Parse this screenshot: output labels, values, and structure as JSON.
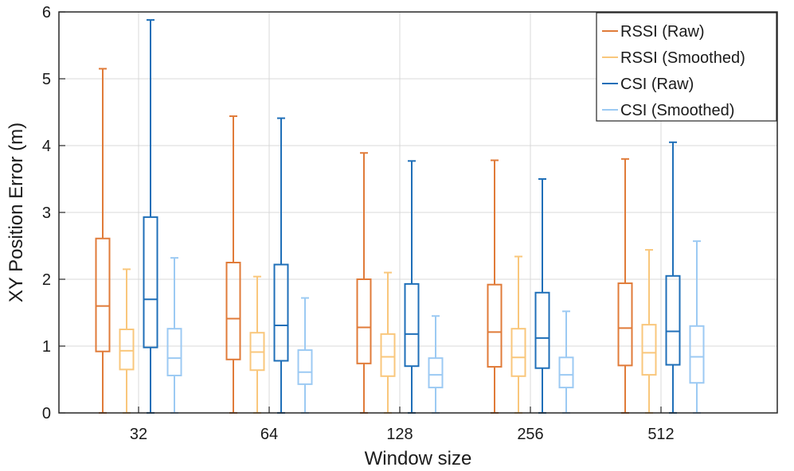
{
  "chart_data": {
    "type": "boxplot",
    "title": "",
    "xlabel": "Window size",
    "ylabel": "XY Position Error (m)",
    "categories": [
      "32",
      "64",
      "128",
      "256",
      "512"
    ],
    "ylim": [
      0,
      6
    ],
    "yticks": [
      0,
      1,
      2,
      3,
      4,
      5,
      6
    ],
    "grid": true,
    "legend_position": "top-right",
    "series": [
      {
        "name": "RSSI (Raw)",
        "color": "#e07b39",
        "boxes": [
          {
            "min": 0.0,
            "q1": 0.92,
            "median": 1.6,
            "q3": 2.61,
            "max": 5.15
          },
          {
            "min": 0.0,
            "q1": 0.8,
            "median": 1.41,
            "q3": 2.25,
            "max": 4.44
          },
          {
            "min": 0.0,
            "q1": 0.74,
            "median": 1.28,
            "q3": 2.0,
            "max": 3.89
          },
          {
            "min": 0.0,
            "q1": 0.69,
            "median": 1.21,
            "q3": 1.92,
            "max": 3.78
          },
          {
            "min": 0.0,
            "q1": 0.71,
            "median": 1.27,
            "q3": 1.94,
            "max": 3.8
          }
        ]
      },
      {
        "name": "RSSI (Smoothed)",
        "color": "#f9c77c",
        "boxes": [
          {
            "min": 0.0,
            "q1": 0.65,
            "median": 0.93,
            "q3": 1.25,
            "max": 2.15
          },
          {
            "min": 0.0,
            "q1": 0.64,
            "median": 0.91,
            "q3": 1.2,
            "max": 2.04
          },
          {
            "min": 0.0,
            "q1": 0.55,
            "median": 0.84,
            "q3": 1.18,
            "max": 2.1
          },
          {
            "min": 0.0,
            "q1": 0.55,
            "median": 0.83,
            "q3": 1.26,
            "max": 2.34
          },
          {
            "min": 0.0,
            "q1": 0.57,
            "median": 0.9,
            "q3": 1.32,
            "max": 2.44
          }
        ]
      },
      {
        "name": "CSI (Raw)",
        "color": "#1f6fb8",
        "boxes": [
          {
            "min": 0.0,
            "q1": 0.98,
            "median": 1.7,
            "q3": 2.93,
            "max": 5.88
          },
          {
            "min": 0.0,
            "q1": 0.78,
            "median": 1.31,
            "q3": 2.22,
            "max": 4.41
          },
          {
            "min": 0.0,
            "q1": 0.7,
            "median": 1.18,
            "q3": 1.93,
            "max": 3.77
          },
          {
            "min": 0.0,
            "q1": 0.67,
            "median": 1.12,
            "q3": 1.8,
            "max": 3.5
          },
          {
            "min": 0.0,
            "q1": 0.72,
            "median": 1.22,
            "q3": 2.05,
            "max": 4.05
          }
        ]
      },
      {
        "name": "CSI (Smoothed)",
        "color": "#9ccaf3",
        "boxes": [
          {
            "min": 0.0,
            "q1": 0.56,
            "median": 0.82,
            "q3": 1.26,
            "max": 2.32
          },
          {
            "min": 0.0,
            "q1": 0.43,
            "median": 0.61,
            "q3": 0.94,
            "max": 1.72
          },
          {
            "min": 0.0,
            "q1": 0.38,
            "median": 0.57,
            "q3": 0.82,
            "max": 1.45
          },
          {
            "min": 0.0,
            "q1": 0.38,
            "median": 0.57,
            "q3": 0.83,
            "max": 1.52
          },
          {
            "min": 0.0,
            "q1": 0.45,
            "median": 0.84,
            "q3": 1.3,
            "max": 2.57
          }
        ]
      }
    ]
  }
}
